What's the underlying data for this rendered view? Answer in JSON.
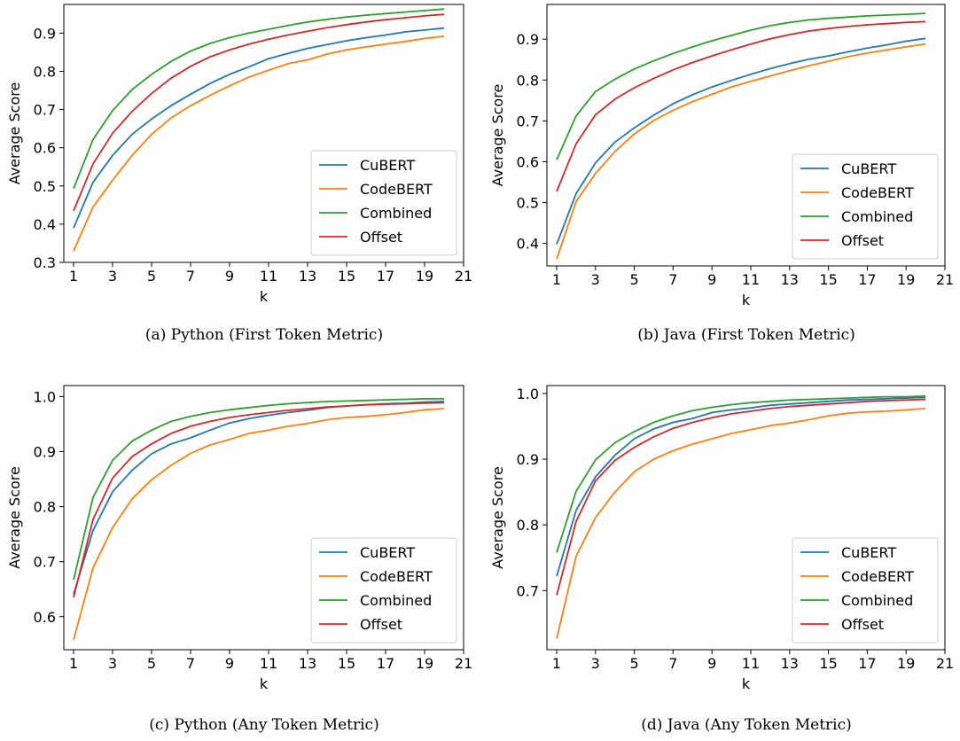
{
  "chart_data": [
    {
      "type": "line",
      "caption": "(a) Python (First Token Metric)",
      "xlabel": "k",
      "ylabel": "Average Score",
      "xlim": [
        0.5,
        21
      ],
      "ylim": [
        0.3,
        0.975
      ],
      "xticks": [
        1,
        3,
        5,
        7,
        9,
        11,
        13,
        15,
        17,
        19,
        21
      ],
      "yticks": [
        0.3,
        0.4,
        0.5,
        0.6,
        0.7,
        0.8,
        0.9
      ],
      "ytick_labels": [
        "0.3",
        "0.4",
        "0.5",
        "0.6",
        "0.7",
        "0.8",
        "0.9"
      ],
      "legend_position": "lower-right",
      "x": [
        1,
        2,
        3,
        4,
        5,
        6,
        7,
        8,
        9,
        10,
        11,
        12,
        13,
        14,
        15,
        16,
        17,
        18,
        19,
        20
      ],
      "series": [
        {
          "name": "CuBERT",
          "color": "#1f77b4",
          "values": [
            0.39,
            0.51,
            0.58,
            0.635,
            0.675,
            0.71,
            0.74,
            0.768,
            0.792,
            0.812,
            0.833,
            0.847,
            0.86,
            0.87,
            0.88,
            0.888,
            0.895,
            0.903,
            0.908,
            0.913
          ]
        },
        {
          "name": "CodeBERT",
          "color": "#ff7f0e",
          "values": [
            0.33,
            0.445,
            0.515,
            0.58,
            0.635,
            0.678,
            0.71,
            0.737,
            0.762,
            0.785,
            0.803,
            0.82,
            0.83,
            0.845,
            0.856,
            0.864,
            0.871,
            0.878,
            0.886,
            0.892
          ]
        },
        {
          "name": "Combined",
          "color": "#2ca02c",
          "values": [
            0.493,
            0.622,
            0.697,
            0.752,
            0.792,
            0.826,
            0.853,
            0.873,
            0.888,
            0.9,
            0.91,
            0.92,
            0.929,
            0.936,
            0.942,
            0.947,
            0.951,
            0.955,
            0.959,
            0.963
          ]
        },
        {
          "name": "Offset",
          "color": "#d62728",
          "values": [
            0.435,
            0.558,
            0.638,
            0.695,
            0.742,
            0.782,
            0.813,
            0.838,
            0.856,
            0.871,
            0.884,
            0.895,
            0.905,
            0.914,
            0.922,
            0.929,
            0.935,
            0.94,
            0.945,
            0.949
          ]
        }
      ]
    },
    {
      "type": "line",
      "caption": "(b) Java (First Token Metric)",
      "xlabel": "k",
      "ylabel": "Average Score",
      "xlim": [
        0.5,
        21
      ],
      "ylim": [
        0.345,
        0.985
      ],
      "xticks": [
        1,
        3,
        5,
        7,
        9,
        11,
        13,
        15,
        17,
        19,
        21
      ],
      "yticks": [
        0.4,
        0.5,
        0.6,
        0.7,
        0.8,
        0.9
      ],
      "ytick_labels": [
        "0.4",
        "0.5",
        "0.6",
        "0.7",
        "0.8",
        "0.9"
      ],
      "legend_position": "lower-right",
      "x": [
        1,
        2,
        3,
        4,
        5,
        6,
        7,
        8,
        9,
        10,
        11,
        12,
        13,
        14,
        15,
        16,
        17,
        18,
        19,
        20
      ],
      "series": [
        {
          "name": "CuBERT",
          "color": "#1f77b4",
          "values": [
            0.398,
            0.522,
            0.597,
            0.648,
            0.683,
            0.714,
            0.742,
            0.764,
            0.783,
            0.799,
            0.814,
            0.828,
            0.84,
            0.851,
            0.859,
            0.869,
            0.878,
            0.886,
            0.895,
            0.902
          ]
        },
        {
          "name": "CodeBERT",
          "color": "#ff7f0e",
          "values": [
            0.362,
            0.503,
            0.571,
            0.625,
            0.668,
            0.701,
            0.726,
            0.747,
            0.765,
            0.783,
            0.797,
            0.81,
            0.823,
            0.835,
            0.846,
            0.857,
            0.866,
            0.874,
            0.881,
            0.888
          ]
        },
        {
          "name": "Combined",
          "color": "#2ca02c",
          "values": [
            0.605,
            0.712,
            0.772,
            0.802,
            0.827,
            0.847,
            0.865,
            0.881,
            0.896,
            0.909,
            0.922,
            0.933,
            0.941,
            0.947,
            0.951,
            0.954,
            0.957,
            0.959,
            0.961,
            0.963
          ]
        },
        {
          "name": "Offset",
          "color": "#d62728",
          "values": [
            0.527,
            0.644,
            0.715,
            0.753,
            0.781,
            0.804,
            0.825,
            0.843,
            0.859,
            0.874,
            0.888,
            0.901,
            0.911,
            0.92,
            0.926,
            0.931,
            0.935,
            0.938,
            0.941,
            0.943
          ]
        }
      ]
    },
    {
      "type": "line",
      "caption": "(c) Python (Any Token Metric)",
      "xlabel": "k",
      "ylabel": "Average Score",
      "xlim": [
        0.5,
        21
      ],
      "ylim": [
        0.54,
        1.02
      ],
      "xticks": [
        1,
        3,
        5,
        7,
        9,
        11,
        13,
        15,
        17,
        19,
        21
      ],
      "yticks": [
        0.6,
        0.7,
        0.8,
        0.9,
        1.0
      ],
      "ytick_labels": [
        "0.6",
        "0.7",
        "0.8",
        "0.9",
        "1.0"
      ],
      "legend_position": "lower-right",
      "x": [
        1,
        2,
        3,
        4,
        5,
        6,
        7,
        8,
        9,
        10,
        11,
        12,
        13,
        14,
        15,
        16,
        17,
        18,
        19,
        20
      ],
      "series": [
        {
          "name": "CuBERT",
          "color": "#1f77b4",
          "values": [
            0.641,
            0.757,
            0.827,
            0.866,
            0.896,
            0.914,
            0.925,
            0.939,
            0.952,
            0.96,
            0.966,
            0.971,
            0.975,
            0.98,
            0.983,
            0.985,
            0.987,
            0.988,
            0.99,
            0.991
          ]
        },
        {
          "name": "CodeBERT",
          "color": "#ff7f0e",
          "values": [
            0.558,
            0.689,
            0.762,
            0.814,
            0.849,
            0.875,
            0.897,
            0.912,
            0.922,
            0.933,
            0.939,
            0.946,
            0.951,
            0.958,
            0.962,
            0.964,
            0.967,
            0.971,
            0.976,
            0.978
          ]
        },
        {
          "name": "Combined",
          "color": "#2ca02c",
          "values": [
            0.667,
            0.817,
            0.884,
            0.919,
            0.939,
            0.955,
            0.964,
            0.971,
            0.976,
            0.98,
            0.984,
            0.987,
            0.989,
            0.991,
            0.992,
            0.993,
            0.994,
            0.995,
            0.996,
            0.996
          ]
        },
        {
          "name": "Offset",
          "color": "#d62728",
          "values": [
            0.635,
            0.777,
            0.852,
            0.891,
            0.914,
            0.933,
            0.946,
            0.955,
            0.962,
            0.967,
            0.971,
            0.975,
            0.978,
            0.981,
            0.983,
            0.985,
            0.986,
            0.987,
            0.988,
            0.989
          ]
        }
      ]
    },
    {
      "type": "line",
      "caption": "(d) Java (Any Token Metric)",
      "xlabel": "k",
      "ylabel": "Average Score",
      "xlim": [
        0.5,
        21
      ],
      "ylim": [
        0.61,
        1.012
      ],
      "xticks": [
        1,
        3,
        5,
        7,
        9,
        11,
        13,
        15,
        17,
        19,
        21
      ],
      "yticks": [
        0.7,
        0.8,
        0.9,
        1.0
      ],
      "ytick_labels": [
        "0.7",
        "0.8",
        "0.9",
        "1.0"
      ],
      "legend_position": "lower-right",
      "x": [
        1,
        2,
        3,
        4,
        5,
        6,
        7,
        8,
        9,
        10,
        11,
        12,
        13,
        14,
        15,
        16,
        17,
        18,
        19,
        20
      ],
      "series": [
        {
          "name": "CuBERT",
          "color": "#1f77b4",
          "values": [
            0.722,
            0.822,
            0.873,
            0.906,
            0.931,
            0.946,
            0.956,
            0.962,
            0.971,
            0.975,
            0.978,
            0.982,
            0.984,
            0.986,
            0.988,
            0.99,
            0.991,
            0.992,
            0.993,
            0.994
          ]
        },
        {
          "name": "CodeBERT",
          "color": "#ff7f0e",
          "values": [
            0.627,
            0.752,
            0.811,
            0.85,
            0.881,
            0.9,
            0.913,
            0.923,
            0.931,
            0.939,
            0.945,
            0.951,
            0.955,
            0.96,
            0.966,
            0.97,
            0.972,
            0.973,
            0.975,
            0.977
          ]
        },
        {
          "name": "Combined",
          "color": "#2ca02c",
          "values": [
            0.758,
            0.851,
            0.899,
            0.925,
            0.942,
            0.956,
            0.966,
            0.974,
            0.979,
            0.983,
            0.986,
            0.988,
            0.99,
            0.991,
            0.992,
            0.993,
            0.994,
            0.995,
            0.995,
            0.996
          ]
        },
        {
          "name": "Offset",
          "color": "#d62728",
          "values": [
            0.693,
            0.805,
            0.867,
            0.898,
            0.918,
            0.934,
            0.947,
            0.956,
            0.963,
            0.969,
            0.973,
            0.977,
            0.98,
            0.982,
            0.984,
            0.986,
            0.988,
            0.989,
            0.99,
            0.991
          ]
        }
      ]
    }
  ]
}
